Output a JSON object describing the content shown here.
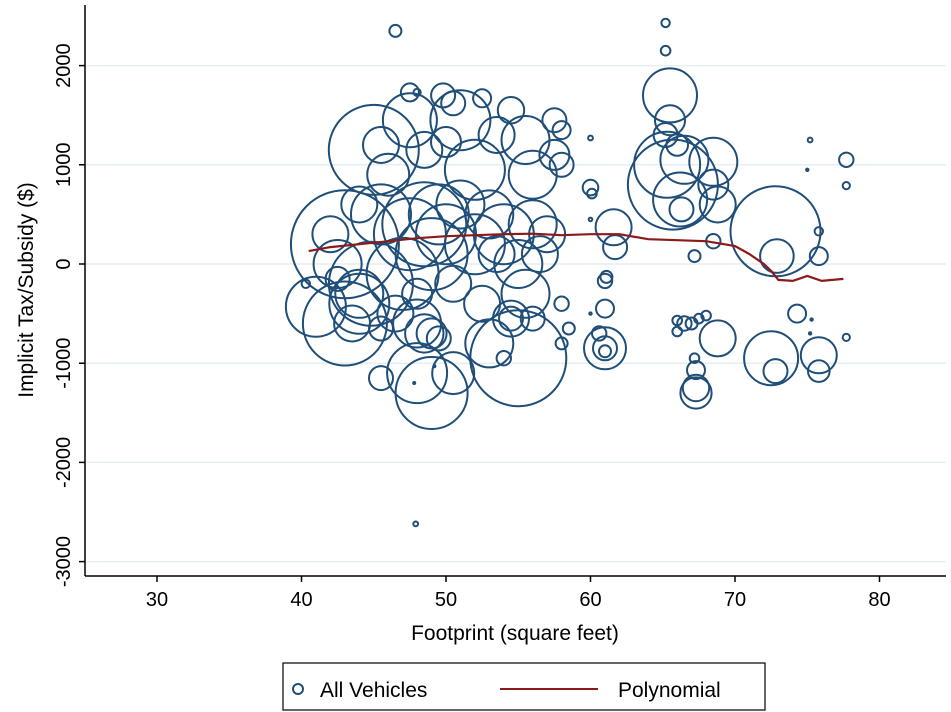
{
  "chart_data": {
    "type": "scatter",
    "title": "",
    "xlabel": "Footprint (square feet)",
    "ylabel": "Implicit Tax/Subsidy ($)",
    "xlim": [
      25,
      85
    ],
    "ylim": [
      -3150,
      2600
    ],
    "xticks": [
      30,
      40,
      50,
      60,
      70,
      80
    ],
    "yticks": [
      -3000,
      -2000,
      -1000,
      0,
      1000,
      2000
    ],
    "xtick_labels": [
      "30",
      "40",
      "50",
      "60",
      "70",
      "80"
    ],
    "ytick_labels": [
      "-3000",
      "-2000",
      "-1000",
      "0",
      "1000",
      "2000"
    ],
    "grid": "horizontal",
    "legend_position": "bottom",
    "colors": {
      "markers": "#1f4e79",
      "polynomial": "#8b1a1a",
      "grid": "#e6eef1"
    },
    "series": [
      {
        "name": "All Vehicles",
        "kind": "bubble",
        "points": [
          [
            46.5,
            2350,
            1
          ],
          [
            65.2,
            2430,
            0.7
          ],
          [
            65.2,
            2150,
            0.8
          ],
          [
            47.5,
            1730,
            1.5
          ],
          [
            48.0,
            1730,
            0.6
          ],
          [
            49.8,
            1700,
            2
          ],
          [
            50.5,
            1620,
            2
          ],
          [
            52.5,
            1670,
            1.5
          ],
          [
            54.5,
            1550,
            2.2
          ],
          [
            47.5,
            1450,
            4.5
          ],
          [
            51.0,
            1450,
            5
          ],
          [
            57.5,
            1450,
            2
          ],
          [
            58.0,
            1350,
            1.5
          ],
          [
            45.0,
            1150,
            7.5
          ],
          [
            45.5,
            1200,
            3
          ],
          [
            48.5,
            1150,
            3
          ],
          [
            50.0,
            1230,
            2.5
          ],
          [
            53.5,
            1300,
            3
          ],
          [
            55.5,
            1250,
            4
          ],
          [
            57.5,
            1100,
            2.5
          ],
          [
            58.0,
            1000,
            2
          ],
          [
            60.0,
            1270,
            0.4
          ],
          [
            46.0,
            900,
            3.5
          ],
          [
            52.0,
            950,
            5
          ],
          [
            56.0,
            900,
            4
          ],
          [
            65.5,
            1700,
            4.5
          ],
          [
            65.5,
            1450,
            2.5
          ],
          [
            65.2,
            1300,
            2
          ],
          [
            66.0,
            1200,
            1.8
          ],
          [
            65.3,
            1000,
            5.5
          ],
          [
            66.5,
            1050,
            4
          ],
          [
            68.5,
            1030,
            4
          ],
          [
            65.7,
            800,
            7.5
          ],
          [
            66.2,
            650,
            4.5
          ],
          [
            66.3,
            550,
            2
          ],
          [
            68.5,
            800,
            2.5
          ],
          [
            68.8,
            600,
            3
          ],
          [
            68.5,
            230,
            1.2
          ],
          [
            67.2,
            80,
            1
          ],
          [
            75.2,
            1250,
            0.4
          ],
          [
            77.7,
            1050,
            1.2
          ],
          [
            77.7,
            790,
            0.6
          ],
          [
            72.8,
            330,
            7.5
          ],
          [
            72.9,
            80,
            2.8
          ],
          [
            75.0,
            950,
            0.2
          ],
          [
            75.8,
            330,
            0.7
          ],
          [
            75.8,
            80,
            1.5
          ],
          [
            60.0,
            770,
            1.3
          ],
          [
            60.1,
            710,
            0.8
          ],
          [
            60.0,
            450,
            0.3
          ],
          [
            61.6,
            370,
            3
          ],
          [
            61.7,
            170,
            2
          ],
          [
            61.1,
            -130,
            1
          ],
          [
            61.0,
            -170,
            1.2
          ],
          [
            43.0,
            200,
            9
          ],
          [
            41.0,
            -430,
            5
          ],
          [
            43.0,
            -600,
            7
          ],
          [
            44.0,
            -400,
            5
          ],
          [
            42.5,
            0,
            4
          ],
          [
            45.5,
            500,
            5
          ],
          [
            44.8,
            -200,
            7
          ],
          [
            47.5,
            300,
            6
          ],
          [
            48.5,
            400,
            7
          ],
          [
            47.0,
            -100,
            6
          ],
          [
            49.0,
            100,
            6
          ],
          [
            49.5,
            500,
            5
          ],
          [
            48.0,
            -600,
            4
          ],
          [
            50.0,
            300,
            5
          ],
          [
            51.0,
            600,
            4
          ],
          [
            52.0,
            200,
            5
          ],
          [
            53.0,
            500,
            4
          ],
          [
            54.0,
            300,
            5
          ],
          [
            55.0,
            0,
            4
          ],
          [
            56.0,
            400,
            4
          ],
          [
            55.5,
            -300,
            4
          ],
          [
            54.5,
            -550,
            3
          ],
          [
            52.5,
            -400,
            3
          ],
          [
            46.5,
            -500,
            3
          ],
          [
            45.5,
            -650,
            2
          ],
          [
            44.0,
            600,
            3
          ],
          [
            42.0,
            300,
            3
          ],
          [
            50.5,
            -200,
            3
          ],
          [
            53.5,
            100,
            3
          ],
          [
            57.0,
            300,
            3
          ],
          [
            56.5,
            100,
            3
          ],
          [
            58.0,
            -400,
            1.2
          ],
          [
            58.5,
            -650,
            1
          ],
          [
            58.0,
            -800,
            1
          ],
          [
            49.0,
            -700,
            2.5
          ],
          [
            48.5,
            -700,
            3.2
          ],
          [
            49.5,
            -750,
            2
          ],
          [
            48.0,
            -1100,
            5
          ],
          [
            49.0,
            -1300,
            6
          ],
          [
            50.5,
            -1100,
            3.5
          ],
          [
            53.0,
            -800,
            4
          ],
          [
            55.0,
            -950,
            8
          ],
          [
            54.5,
            -550,
            2
          ],
          [
            56.0,
            -550,
            2
          ],
          [
            54.0,
            -950,
            1.2
          ],
          [
            48.0,
            -300,
            2.5
          ],
          [
            45.5,
            -1150,
            2
          ],
          [
            43.5,
            -600,
            3
          ],
          [
            44.0,
            -300,
            4
          ],
          [
            42.5,
            -150,
            2
          ],
          [
            40.3,
            -200,
            0.7
          ],
          [
            47.8,
            -1200,
            0.1
          ],
          [
            49.2,
            -1030,
            0.1
          ],
          [
            47.9,
            -2620,
            0.4
          ],
          [
            61.0,
            -850,
            3.5
          ],
          [
            61.0,
            -850,
            2
          ],
          [
            61.0,
            -880,
            1
          ],
          [
            60.6,
            -700,
            1.2
          ],
          [
            61.0,
            -450,
            1.5
          ],
          [
            60.0,
            -500,
            0.2
          ],
          [
            66.0,
            -570,
            0.8
          ],
          [
            66.0,
            -680,
            0.8
          ],
          [
            66.5,
            -600,
            1.2
          ],
          [
            67.0,
            -600,
            1
          ],
          [
            67.5,
            -550,
            0.8
          ],
          [
            68.0,
            -520,
            0.8
          ],
          [
            67.3,
            -1070,
            1.5
          ],
          [
            67.3,
            -1250,
            2.2
          ],
          [
            67.3,
            -1300,
            2.6
          ],
          [
            67.2,
            -950,
            0.8
          ],
          [
            68.8,
            -750,
            3
          ],
          [
            72.5,
            -950,
            4.5
          ],
          [
            72.8,
            -1080,
            2
          ],
          [
            74.3,
            -500,
            1.5
          ],
          [
            75.8,
            -920,
            3
          ],
          [
            75.8,
            -1080,
            1.8
          ],
          [
            77.7,
            -740,
            0.6
          ],
          [
            75.2,
            -700,
            0.2
          ],
          [
            75.3,
            -560,
            0.2
          ]
        ]
      },
      {
        "name": "Polynomial",
        "kind": "line",
        "points": [
          [
            40.5,
            130
          ],
          [
            42,
            170
          ],
          [
            44,
            200
          ],
          [
            46,
            230
          ],
          [
            48,
            260
          ],
          [
            50,
            280
          ],
          [
            52,
            290
          ],
          [
            54,
            300
          ],
          [
            56,
            305
          ],
          [
            58,
            290
          ],
          [
            60,
            300
          ],
          [
            62,
            300
          ],
          [
            64,
            250
          ],
          [
            66,
            240
          ],
          [
            68,
            230
          ],
          [
            70,
            180
          ],
          [
            71,
            100
          ],
          [
            72,
            0
          ],
          [
            72.5,
            -70
          ],
          [
            73,
            -160
          ],
          [
            74,
            -170
          ],
          [
            75,
            -120
          ],
          [
            76,
            -170
          ],
          [
            77.5,
            -150
          ]
        ]
      }
    ]
  }
}
